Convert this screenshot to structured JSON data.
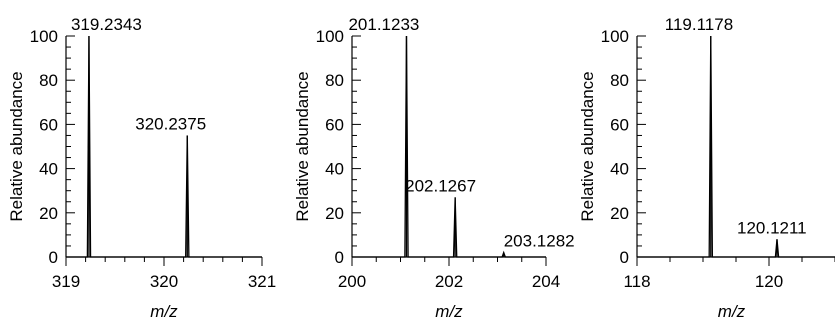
{
  "chart_data": [
    {
      "type": "line",
      "xlabel": "m/z",
      "ylabel": "Relative abundance",
      "xlim": [
        319,
        321
      ],
      "ylim": [
        0,
        100
      ],
      "xticks_major": [
        319,
        320,
        321
      ],
      "xticks_minor_step": 0.2,
      "yticks_major": [
        0,
        20,
        40,
        60,
        80,
        100
      ],
      "yticks_minor_step": 5,
      "peaks": [
        {
          "x": 319.2343,
          "y": 100,
          "label": "319.2343"
        },
        {
          "x": 320.2375,
          "y": 55,
          "label": "320.2375"
        }
      ]
    },
    {
      "type": "line",
      "xlabel": "m/z",
      "ylabel": "Relative abundance",
      "xlim": [
        200,
        204
      ],
      "ylim": [
        0,
        100
      ],
      "xticks_major": [
        200,
        202,
        204
      ],
      "xticks_minor_step": 0.5,
      "yticks_major": [
        0,
        20,
        40,
        60,
        80,
        100
      ],
      "yticks_minor_step": 5,
      "peaks": [
        {
          "x": 201.1233,
          "y": 100,
          "label": "201.1233"
        },
        {
          "x": 202.1267,
          "y": 27,
          "label": "202.1267"
        },
        {
          "x": 203.1282,
          "y": 2,
          "label": "203.1282"
        }
      ]
    },
    {
      "type": "line",
      "xlabel": "m/z",
      "ylabel": "Relative abundance",
      "xlim": [
        118,
        121
      ],
      "ylim": [
        0,
        100
      ],
      "xticks_major": [
        118,
        120
      ],
      "xticks_minor_step": 0.5,
      "yticks_major": [
        0,
        20,
        40,
        60,
        80,
        100
      ],
      "yticks_minor_step": 5,
      "peaks": [
        {
          "x": 119.1178,
          "y": 100,
          "label": "119.1178"
        },
        {
          "x": 120.1211,
          "y": 8,
          "label": "120.1211"
        }
      ]
    }
  ]
}
